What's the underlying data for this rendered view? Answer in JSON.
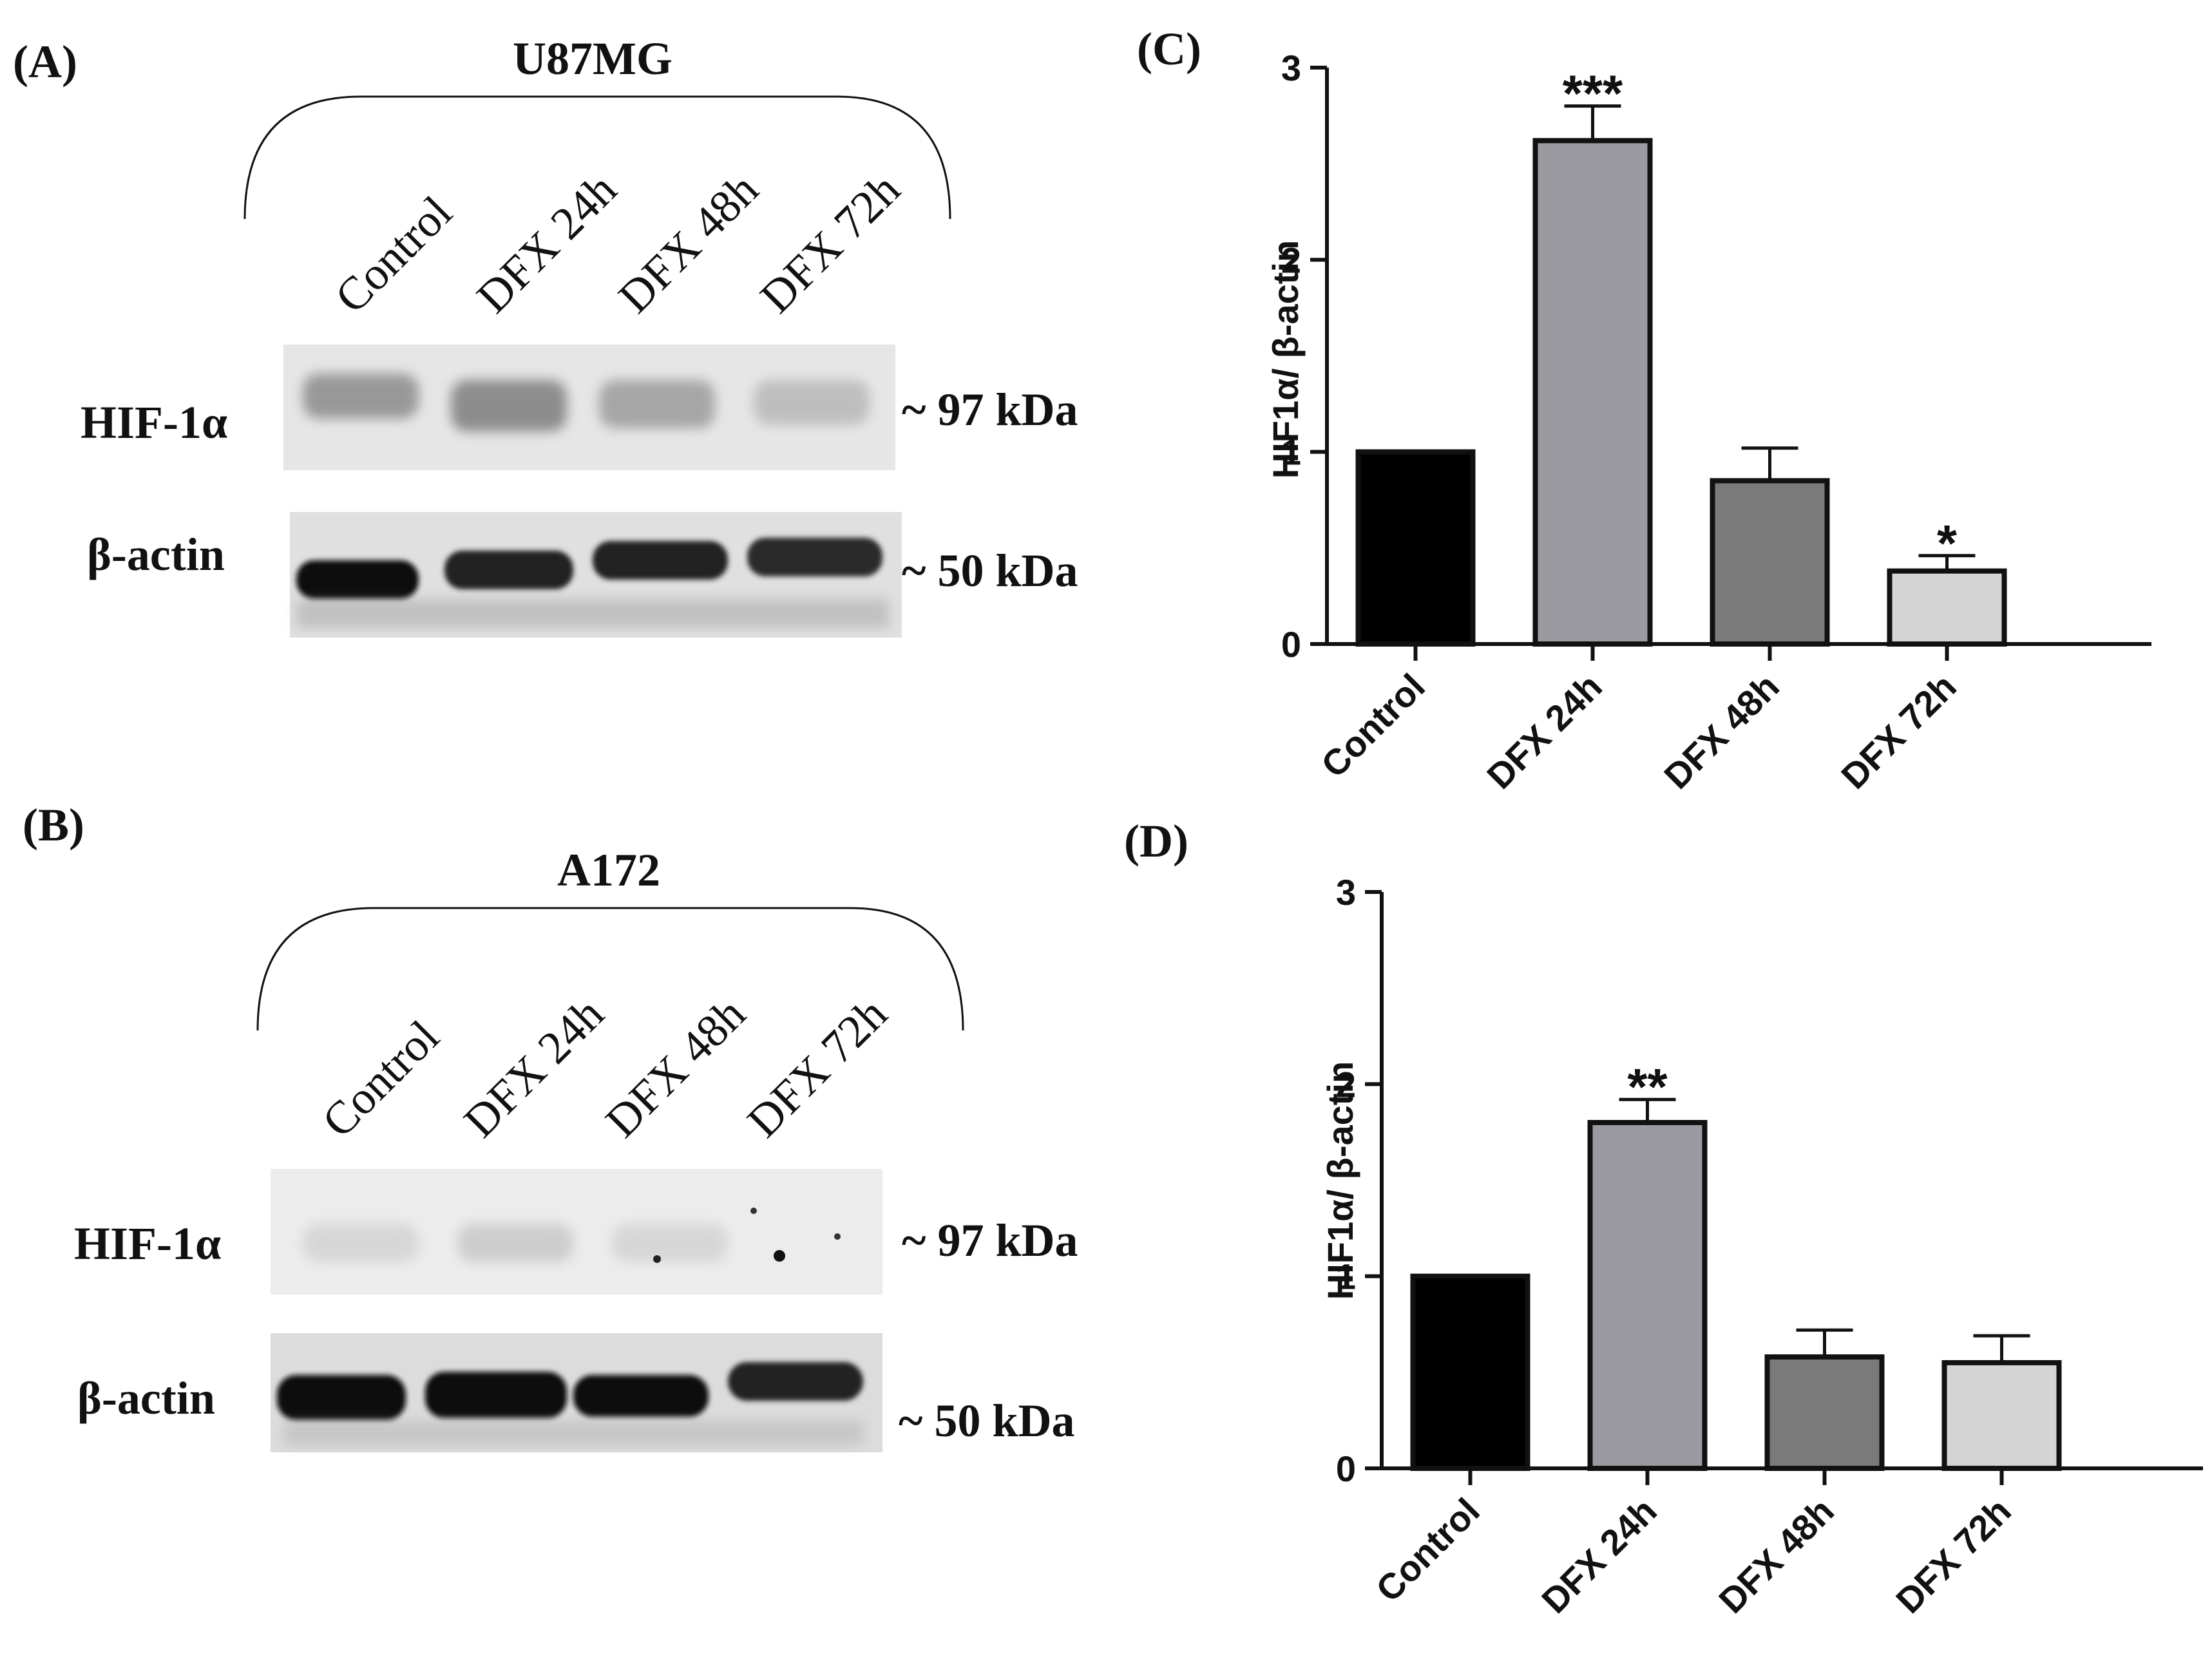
{
  "panels": {
    "A": {
      "label": "(A)",
      "cell_line": "U87MG",
      "lanes": [
        "Control",
        "DFX 24h",
        "DFX 48h",
        "DFX 72h"
      ],
      "rows": [
        {
          "name": "HIF-1α",
          "size": "~ 97 kDa"
        },
        {
          "name": "β-actin",
          "size": "~ 50 kDa"
        }
      ]
    },
    "B": {
      "label": "(B)",
      "cell_line": "A172",
      "lanes": [
        "Control",
        "DFX 24h",
        "DFX 48h",
        "DFX 72h"
      ],
      "rows": [
        {
          "name": "HIF-1α",
          "size": "~ 97 kDa"
        },
        {
          "name": "β-actin",
          "size": "~ 50 kDa"
        }
      ]
    }
  },
  "colors": {
    "control": "#000000",
    "dfx24": "#9a9aa0",
    "dfx48": "#7a7a7a",
    "dfx72": "#d4d4d4",
    "blot_bg": "#e8e8e8",
    "band": "#1c1c1c"
  },
  "chart_data": [
    {
      "panel": "(C)",
      "type": "bar",
      "categories": [
        "Control",
        "DFX 24h",
        "DFX 48h",
        "DFX 72h"
      ],
      "values": [
        1.0,
        2.62,
        0.85,
        0.38
      ],
      "errors": [
        0,
        0.18,
        0.17,
        0.08
      ],
      "significance": [
        "",
        "***",
        "",
        "*"
      ],
      "ylabel": "HIF1α/ β-actin",
      "ylim": [
        0,
        3
      ],
      "yticks": [
        0,
        1,
        2,
        3
      ]
    },
    {
      "panel": "(D)",
      "type": "bar",
      "categories": [
        "Control",
        "DFX 24h",
        "DFX 48h",
        "DFX 72h"
      ],
      "values": [
        1.0,
        1.8,
        0.58,
        0.55
      ],
      "errors": [
        0,
        0.12,
        0.14,
        0.14
      ],
      "significance": [
        "",
        "**",
        "",
        ""
      ],
      "ylabel": "HIF1α/ β-actin",
      "ylim": [
        0,
        3
      ],
      "yticks": [
        0,
        1,
        2,
        3
      ]
    }
  ]
}
